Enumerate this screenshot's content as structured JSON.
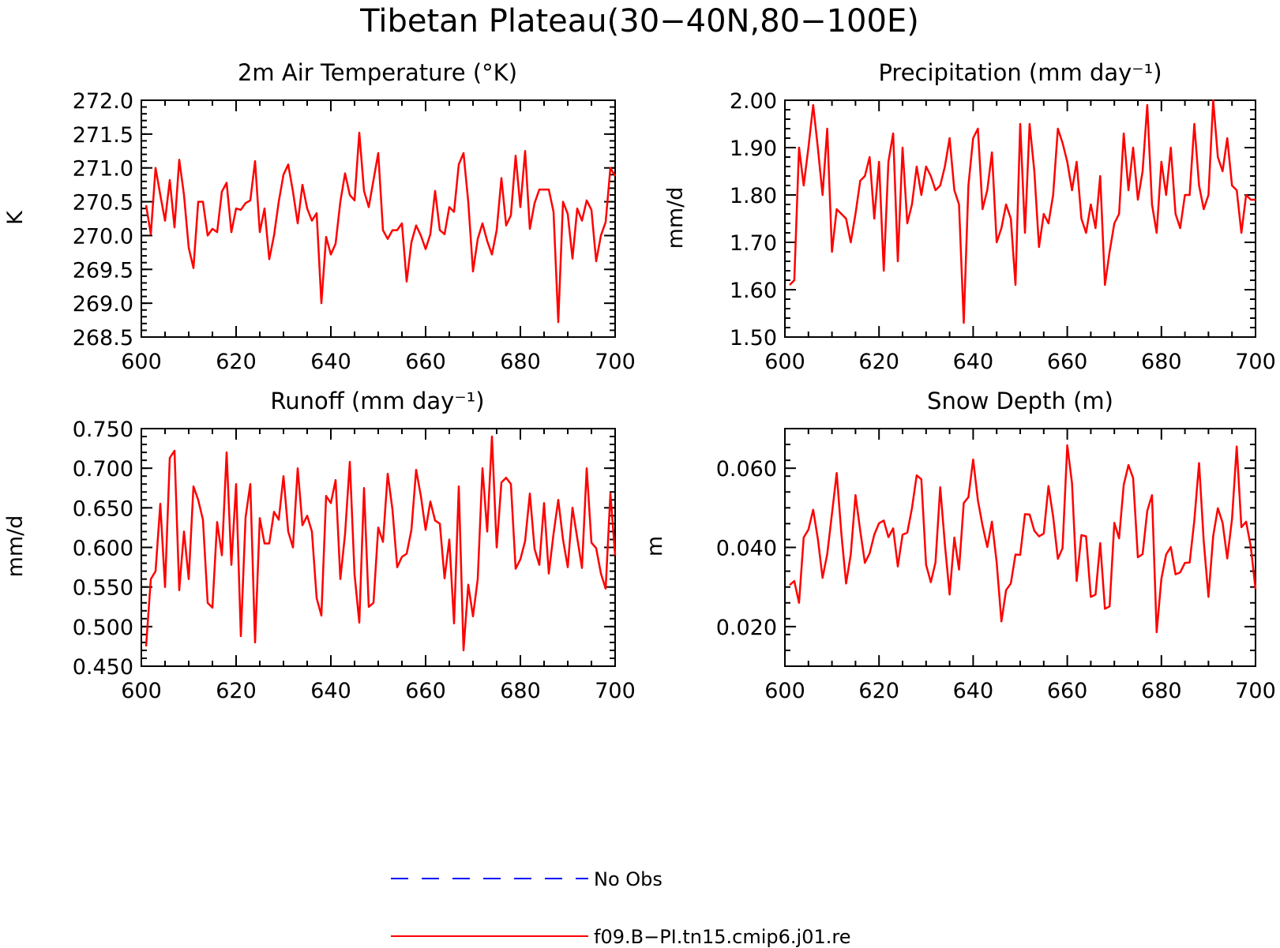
{
  "figure": {
    "title": "Tibetan Plateau(30−40N,80−100E)",
    "legend": [
      {
        "name": "No Obs",
        "color": "#0000ff",
        "style": "dashed"
      },
      {
        "name": "f09.B−PI.tn15.cmip6.j01.re",
        "color": "#ff0000",
        "style": "solid"
      }
    ]
  },
  "chart_data": [
    {
      "type": "line",
      "title": "2m Air Temperature (°K)",
      "ylabel": "K",
      "xlim": [
        600,
        700
      ],
      "ylim": [
        268.5,
        272.0
      ],
      "xticks": [
        600,
        620,
        640,
        660,
        680,
        700
      ],
      "xtick_labels": [
        "600",
        "620",
        "640",
        "660",
        "680",
        "700"
      ],
      "yticks": [
        268.5,
        269.0,
        269.5,
        270.0,
        270.5,
        271.0,
        271.5,
        272.0
      ],
      "ytick_labels": [
        "268.5",
        "269.0",
        "269.5",
        "270.0",
        "270.5",
        "271.0",
        "271.5",
        "272.0"
      ],
      "x_start": 601,
      "series": [
        {
          "name": "f09.B−PI.tn15.cmip6.j01.re",
          "color": "#ff0000",
          "values": [
            270.45,
            270.02,
            271.0,
            270.6,
            270.22,
            270.82,
            270.12,
            271.12,
            270.6,
            269.82,
            269.52,
            270.5,
            270.5,
            270.0,
            270.1,
            270.05,
            270.65,
            270.78,
            270.05,
            270.4,
            270.38,
            270.48,
            270.52,
            271.1,
            270.05,
            270.4,
            269.65,
            270.0,
            270.5,
            270.9,
            271.05,
            270.65,
            270.18,
            270.75,
            270.4,
            270.22,
            270.33,
            269.0,
            269.98,
            269.72,
            269.88,
            270.5,
            270.92,
            270.6,
            270.52,
            271.52,
            270.66,
            270.42,
            270.82,
            271.22,
            270.08,
            269.95,
            270.08,
            270.08,
            270.18,
            269.32,
            269.9,
            270.15,
            270.0,
            269.8,
            270.02,
            270.66,
            270.08,
            270.02,
            270.42,
            270.35,
            271.05,
            271.22,
            270.5,
            269.47,
            269.95,
            270.18,
            269.92,
            269.72,
            270.08,
            270.85,
            270.15,
            270.3,
            271.18,
            270.42,
            271.25,
            270.1,
            270.48,
            270.68,
            270.68,
            270.68,
            270.35,
            268.72,
            270.5,
            270.32,
            269.66,
            270.4,
            270.22,
            270.52,
            270.38,
            269.62,
            270.0,
            270.2,
            271.0,
            270.88
          ]
        }
      ]
    },
    {
      "type": "line",
      "title": "Precipitation (mm day⁻¹)",
      "ylabel": "mm/d",
      "xlim": [
        600,
        700
      ],
      "ylim": [
        1.5,
        2.0
      ],
      "xticks": [
        600,
        620,
        640,
        660,
        680,
        700
      ],
      "xtick_labels": [
        "600",
        "620",
        "640",
        "660",
        "680",
        "700"
      ],
      "yticks": [
        1.5,
        1.6,
        1.7,
        1.8,
        1.9,
        2.0
      ],
      "ytick_labels": [
        "1.50",
        "1.60",
        "1.70",
        "1.80",
        "1.90",
        "2.00"
      ],
      "x_start": 601,
      "series": [
        {
          "name": "f09.B−PI.tn15.cmip6.j01.re",
          "color": "#ff0000",
          "values": [
            1.61,
            1.62,
            1.9,
            1.82,
            1.9,
            1.99,
            1.9,
            1.8,
            1.94,
            1.68,
            1.77,
            1.76,
            1.75,
            1.7,
            1.76,
            1.83,
            1.84,
            1.88,
            1.75,
            1.87,
            1.64,
            1.87,
            1.93,
            1.66,
            1.9,
            1.74,
            1.78,
            1.86,
            1.8,
            1.86,
            1.84,
            1.81,
            1.82,
            1.86,
            1.92,
            1.81,
            1.78,
            1.53,
            1.82,
            1.92,
            1.94,
            1.77,
            1.81,
            1.89,
            1.7,
            1.73,
            1.78,
            1.75,
            1.61,
            1.95,
            1.72,
            1.95,
            1.85,
            1.69,
            1.76,
            1.74,
            1.8,
            1.94,
            1.91,
            1.87,
            1.81,
            1.87,
            1.75,
            1.72,
            1.78,
            1.73,
            1.84,
            1.61,
            1.68,
            1.74,
            1.76,
            1.93,
            1.81,
            1.9,
            1.79,
            1.85,
            1.99,
            1.78,
            1.72,
            1.87,
            1.8,
            1.9,
            1.76,
            1.73,
            1.8,
            1.8,
            1.95,
            1.82,
            1.77,
            1.8,
            2.0,
            1.88,
            1.85,
            1.92,
            1.82,
            1.81,
            1.72,
            1.8,
            1.79,
            1.79
          ]
        }
      ]
    },
    {
      "type": "line",
      "title": "Runoff (mm day⁻¹)",
      "ylabel": "mm/d",
      "xlim": [
        600,
        700
      ],
      "ylim": [
        0.45,
        0.75
      ],
      "xticks": [
        600,
        620,
        640,
        660,
        680,
        700
      ],
      "xtick_labels": [
        "600",
        "620",
        "640",
        "660",
        "680",
        "700"
      ],
      "yticks": [
        0.45,
        0.5,
        0.55,
        0.6,
        0.65,
        0.7,
        0.75
      ],
      "ytick_labels": [
        "0.450",
        "0.500",
        "0.550",
        "0.600",
        "0.650",
        "0.700",
        "0.750"
      ],
      "x_start": 601,
      "series": [
        {
          "name": "f09.B−PI.tn15.cmip6.j01.re",
          "color": "#ff0000",
          "values": [
            0.475,
            0.56,
            0.57,
            0.655,
            0.55,
            0.713,
            0.722,
            0.546,
            0.62,
            0.56,
            0.677,
            0.66,
            0.635,
            0.53,
            0.524,
            0.632,
            0.59,
            0.72,
            0.578,
            0.68,
            0.488,
            0.638,
            0.68,
            0.48,
            0.637,
            0.605,
            0.605,
            0.645,
            0.635,
            0.69,
            0.62,
            0.6,
            0.7,
            0.628,
            0.64,
            0.62,
            0.536,
            0.514,
            0.665,
            0.656,
            0.685,
            0.56,
            0.617,
            0.708,
            0.566,
            0.505,
            0.675,
            0.525,
            0.53,
            0.625,
            0.607,
            0.693,
            0.648,
            0.575,
            0.588,
            0.592,
            0.622,
            0.698,
            0.665,
            0.622,
            0.658,
            0.634,
            0.63,
            0.561,
            0.61,
            0.504,
            0.677,
            0.47,
            0.553,
            0.513,
            0.56,
            0.7,
            0.62,
            0.74,
            0.6,
            0.682,
            0.688,
            0.68,
            0.573,
            0.585,
            0.608,
            0.668,
            0.598,
            0.578,
            0.656,
            0.567,
            0.617,
            0.66,
            0.61,
            0.575,
            0.65,
            0.612,
            0.574,
            0.7,
            0.606,
            0.599,
            0.567,
            0.548,
            0.668,
            0.59
          ]
        }
      ]
    },
    {
      "type": "line",
      "title": "Snow Depth (m)",
      "ylabel": "m",
      "xlim": [
        600,
        700
      ],
      "ylim": [
        0.01,
        0.07
      ],
      "xticks": [
        600,
        620,
        640,
        660,
        680,
        700
      ],
      "xtick_labels": [
        "600",
        "620",
        "640",
        "660",
        "680",
        "700"
      ],
      "yticks": [
        0.02,
        0.04,
        0.06
      ],
      "ytick_labels": [
        "0.020",
        "0.040",
        "0.060"
      ],
      "x_start": 601,
      "series": [
        {
          "name": "f09.B−PI.tn15.cmip6.j01.re",
          "color": "#ff0000",
          "values": [
            0.0305,
            0.0315,
            0.026,
            0.0425,
            0.0445,
            0.0495,
            0.0422,
            0.0323,
            0.0383,
            0.0485,
            0.0588,
            0.0435,
            0.0309,
            0.0382,
            0.0532,
            0.0442,
            0.0361,
            0.0385,
            0.0432,
            0.0461,
            0.0468,
            0.0426,
            0.0448,
            0.0352,
            0.0432,
            0.0437,
            0.0499,
            0.0582,
            0.0572,
            0.0356,
            0.0312,
            0.0362,
            0.0552,
            0.0408,
            0.0281,
            0.0425,
            0.0344,
            0.0512,
            0.0527,
            0.0622,
            0.0519,
            0.0455,
            0.0401,
            0.0465,
            0.0362,
            0.0213,
            0.0292,
            0.0309,
            0.0382,
            0.0381,
            0.0484,
            0.0483,
            0.0442,
            0.0428,
            0.0435,
            0.0555,
            0.0478,
            0.0371,
            0.0398,
            0.0658,
            0.0562,
            0.0315,
            0.0431,
            0.0428,
            0.0275,
            0.0281,
            0.0411,
            0.0245,
            0.0251,
            0.0462,
            0.0423,
            0.0558,
            0.0608,
            0.0575,
            0.0375,
            0.0383,
            0.0492,
            0.0532,
            0.0186,
            0.0321,
            0.0382,
            0.0401,
            0.0332,
            0.0337,
            0.0361,
            0.0362,
            0.0468,
            0.0613,
            0.0416,
            0.0275,
            0.0429,
            0.0499,
            0.0462,
            0.0372,
            0.0471,
            0.0655,
            0.0451,
            0.0465,
            0.0402,
            0.0295
          ]
        }
      ]
    }
  ]
}
